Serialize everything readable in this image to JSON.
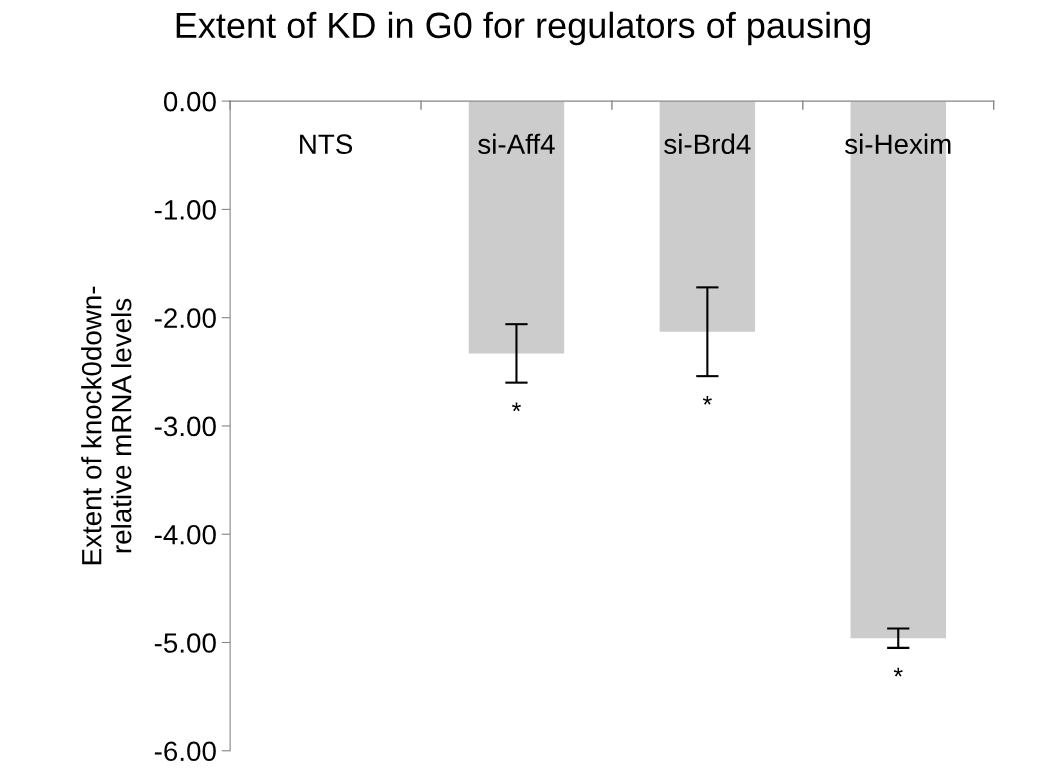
{
  "chart_data": {
    "type": "bar",
    "title": "Extent of KD in G0 for regulators of pausing",
    "ylabel": "Extent of knock0down-\nrelative mRNA levels",
    "categories": [
      "NTS",
      "si-Aff4",
      "si-Brd4",
      "si-Hexim"
    ],
    "values": [
      0,
      -2.33,
      -2.13,
      -4.96
    ],
    "errors": [
      null,
      0.27,
      0.41,
      0.09
    ],
    "color": "#cccccc",
    "ylim": [
      -6,
      0
    ],
    "yticks": [
      {
        "value": -6,
        "label": "-6.00"
      },
      {
        "value": -5,
        "label": "-5.00"
      },
      {
        "value": -4,
        "label": "-4.00"
      },
      {
        "value": -3,
        "label": "-3.00"
      },
      {
        "value": -2,
        "label": "-2.00"
      },
      {
        "value": -1,
        "label": "-1.00"
      },
      {
        "value": 0,
        "label": "0.00"
      }
    ],
    "annotations": [
      "*",
      "*",
      "*"
    ],
    "grid": false,
    "legend": false
  }
}
